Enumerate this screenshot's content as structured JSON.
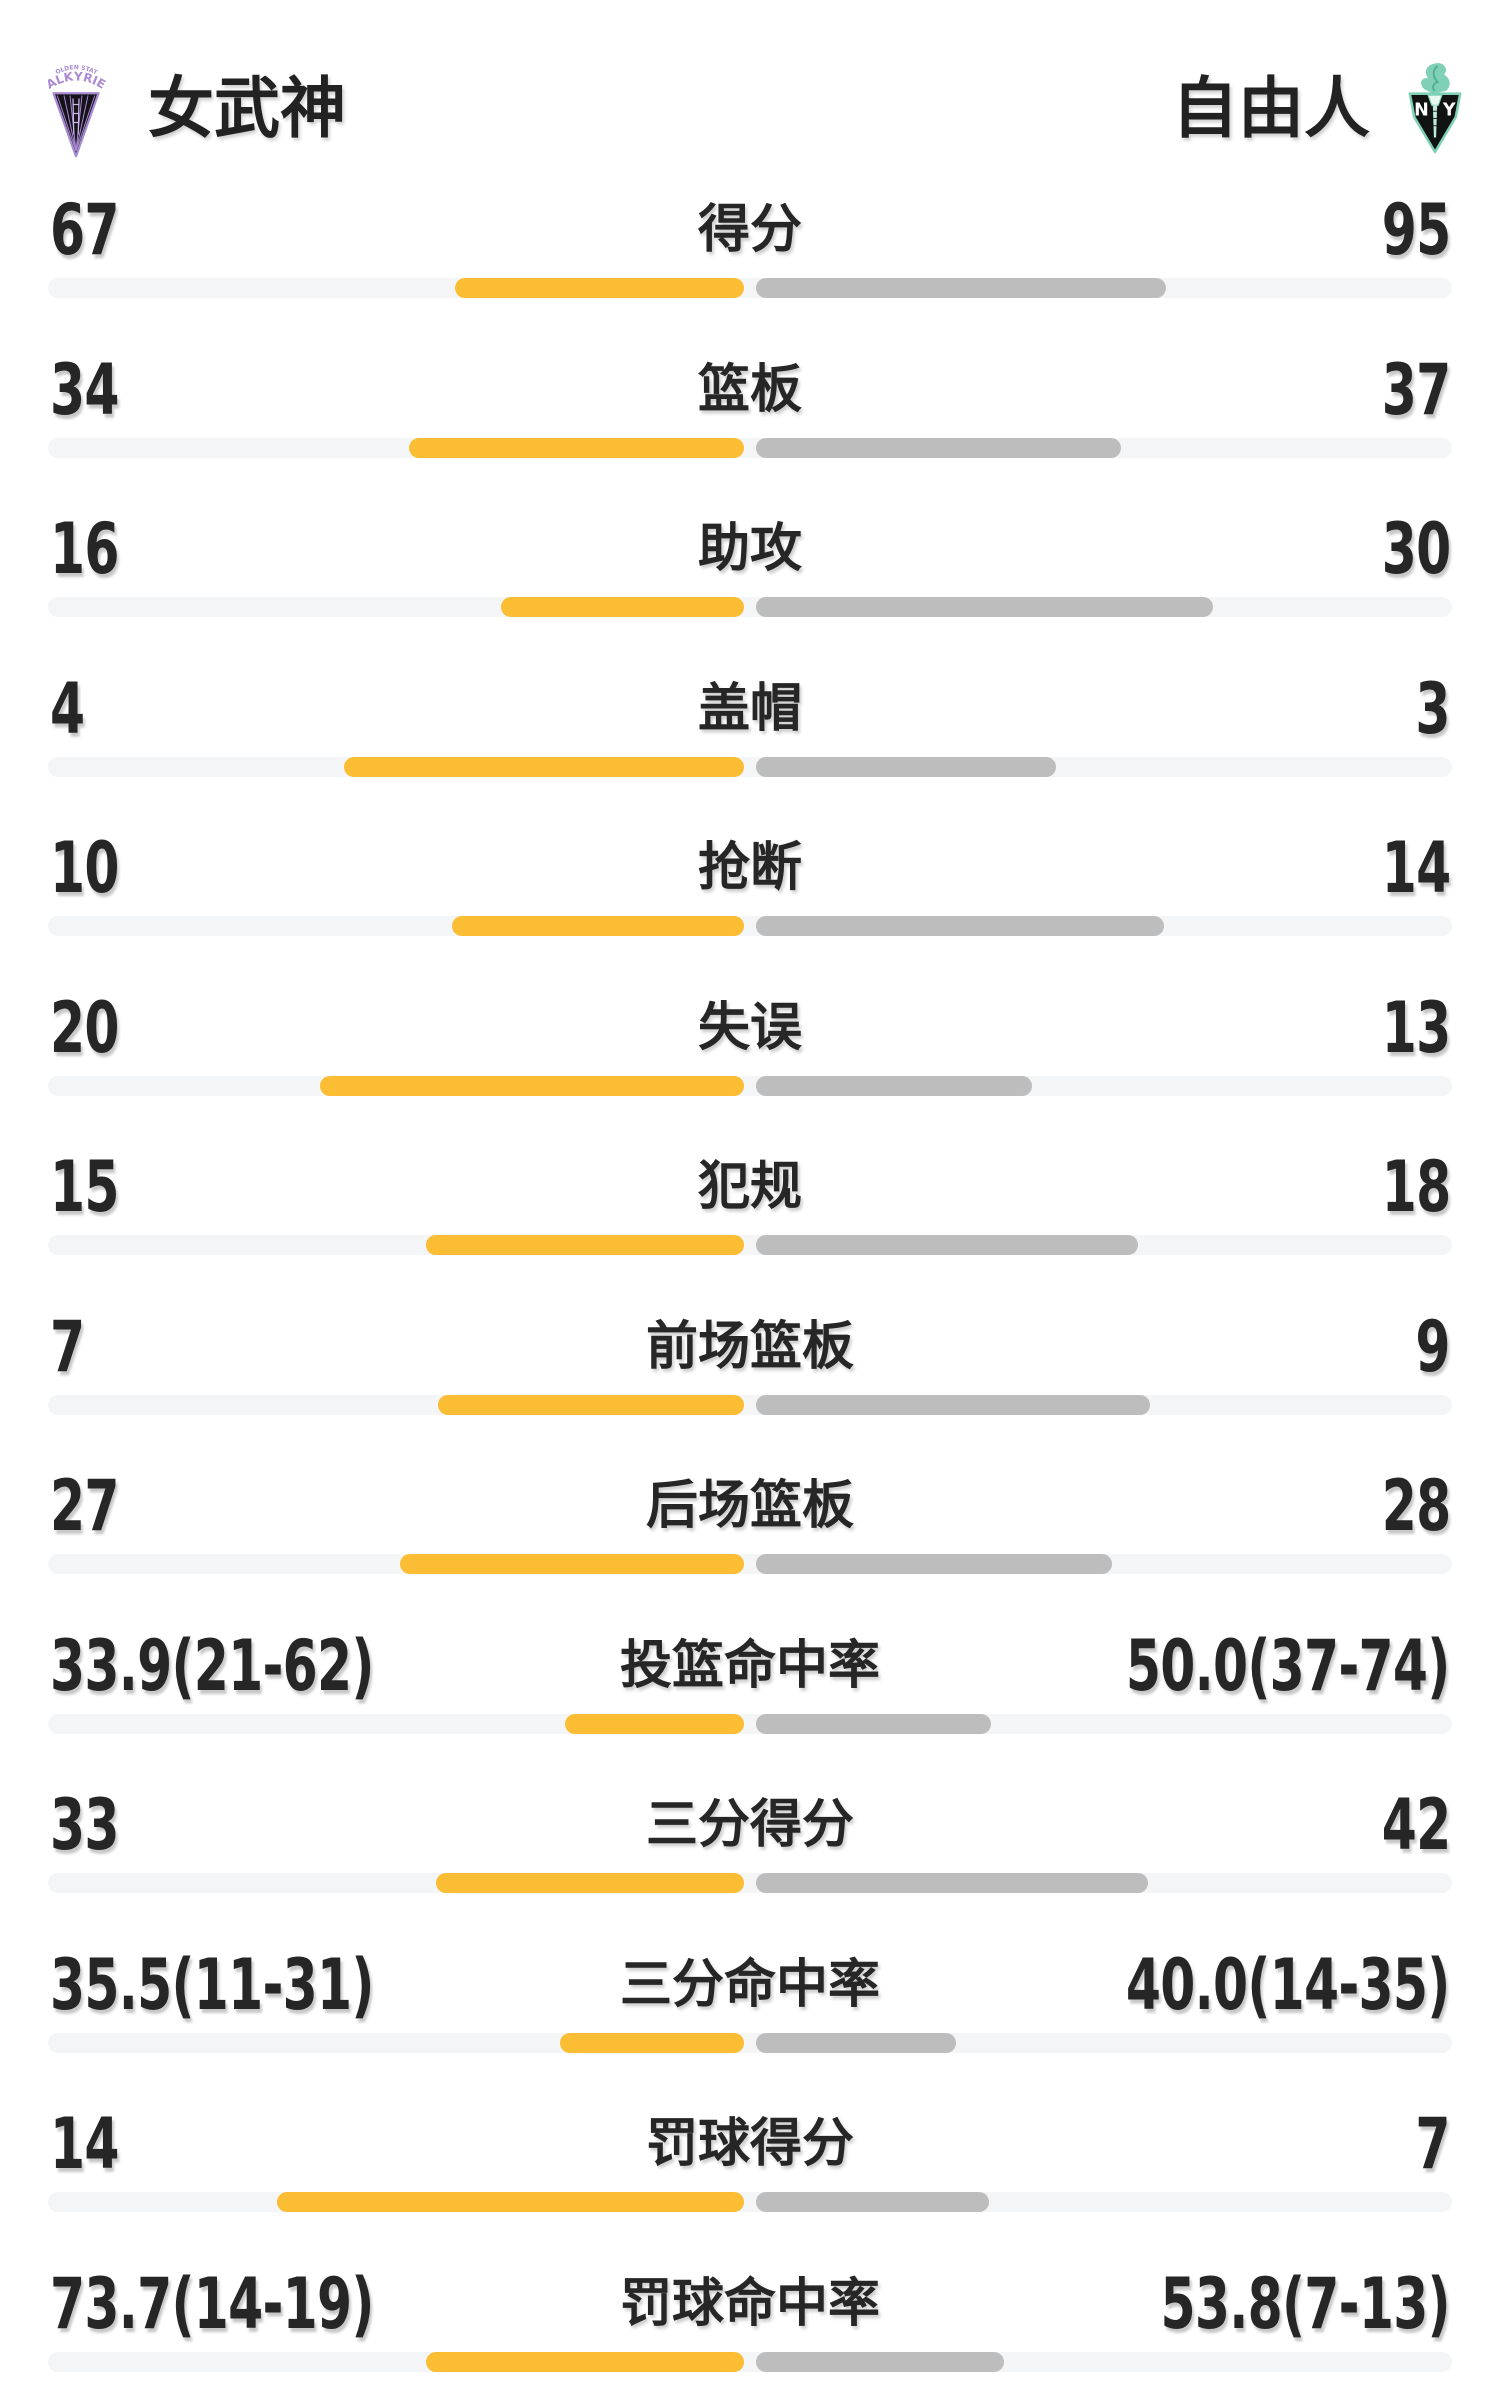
{
  "header": {
    "home": {
      "name": "女武神",
      "logo_arc_top": "GOLDEN STATE",
      "logo_arc_main": "VALKYRIES"
    },
    "away": {
      "name": "自由人",
      "logo_letter_left": "N",
      "logo_letter_right": "Y"
    }
  },
  "colors": {
    "home_bar": "#FBBD33",
    "away_bar": "#BDBDBD",
    "track": "#F4F5F7",
    "text": "#262626",
    "valkyries_purple": "#A98BD3",
    "liberty_mint": "#7FD0B6"
  },
  "chart_data": {
    "type": "bar",
    "orientation": "horizontal-paired-from-center",
    "home_team": "女武神",
    "away_team": "自由人",
    "legend_position": "top",
    "rows": [
      {
        "label": "得分",
        "home": "67",
        "away": "95",
        "home_value": 67,
        "away_value": 95,
        "kind": "count"
      },
      {
        "label": "篮板",
        "home": "34",
        "away": "37",
        "home_value": 34,
        "away_value": 37,
        "kind": "count"
      },
      {
        "label": "助攻",
        "home": "16",
        "away": "30",
        "home_value": 16,
        "away_value": 30,
        "kind": "count"
      },
      {
        "label": "盖帽",
        "home": "4",
        "away": "3",
        "home_value": 4,
        "away_value": 3,
        "kind": "count"
      },
      {
        "label": "抢断",
        "home": "10",
        "away": "14",
        "home_value": 10,
        "away_value": 14,
        "kind": "count"
      },
      {
        "label": "失误",
        "home": "20",
        "away": "13",
        "home_value": 20,
        "away_value": 13,
        "kind": "count"
      },
      {
        "label": "犯规",
        "home": "15",
        "away": "18",
        "home_value": 15,
        "away_value": 18,
        "kind": "count"
      },
      {
        "label": "前场篮板",
        "home": "7",
        "away": "9",
        "home_value": 7,
        "away_value": 9,
        "kind": "count"
      },
      {
        "label": "后场篮板",
        "home": "27",
        "away": "28",
        "home_value": 27,
        "away_value": 28,
        "kind": "count"
      },
      {
        "label": "投篮命中率",
        "home": "33.9(21-62)",
        "away": "50.0(37-74)",
        "home_value": 33.9,
        "away_value": 50.0,
        "kind": "percent"
      },
      {
        "label": "三分得分",
        "home": "33",
        "away": "42",
        "home_value": 33,
        "away_value": 42,
        "kind": "count"
      },
      {
        "label": "三分命中率",
        "home": "35.5(11-31)",
        "away": "40.0(14-35)",
        "home_value": 35.5,
        "away_value": 40.0,
        "kind": "percent"
      },
      {
        "label": "罚球得分",
        "home": "14",
        "away": "7",
        "home_value": 14,
        "away_value": 7,
        "kind": "count"
      },
      {
        "label": "罚球命中率",
        "home": "73.7(14-19)",
        "away": "53.8(7-13)",
        "home_value": 73.7,
        "away_value": 53.8,
        "kind": "percent"
      }
    ]
  }
}
